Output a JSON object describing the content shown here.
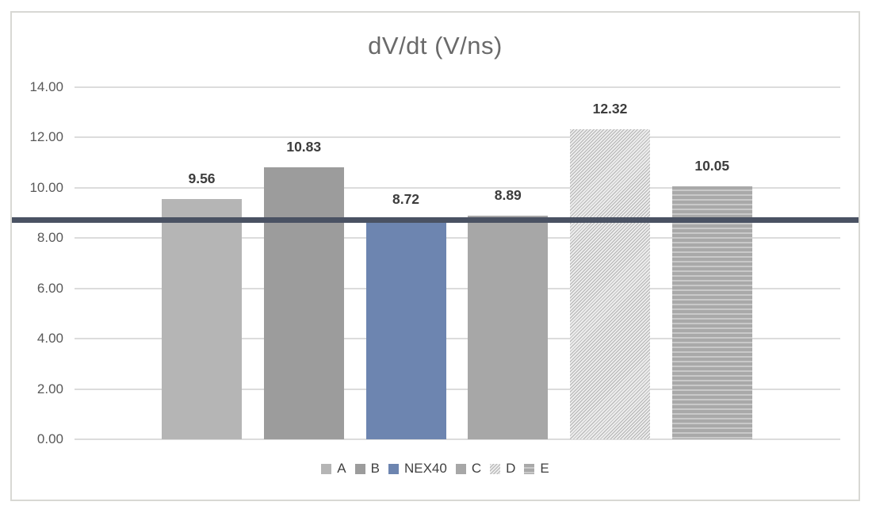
{
  "chart_data": {
    "type": "bar",
    "title": "dV/dt (V/ns)",
    "categories": [
      "A",
      "B",
      "NEX40",
      "C",
      "D",
      "E"
    ],
    "values": [
      9.56,
      10.83,
      8.72,
      8.89,
      12.32,
      10.05
    ],
    "value_labels": [
      "9.56",
      "10.83",
      "8.72",
      "8.89",
      "12.32",
      "10.05"
    ],
    "xlabel": "",
    "ylabel": "",
    "ylim": [
      0,
      14
    ],
    "y_tick_step": 2,
    "y_tick_labels": [
      "0.00",
      "2.00",
      "4.00",
      "6.00",
      "8.00",
      "10.00",
      "12.00",
      "14.00"
    ],
    "grid": true,
    "legend_position": "bottom",
    "series_styles": [
      {
        "fill": "solid",
        "color": "#b5b5b5"
      },
      {
        "fill": "solid",
        "color": "#9c9c9c"
      },
      {
        "fill": "solid",
        "color": "#6d85b0"
      },
      {
        "fill": "solid",
        "color": "#a7a7a7"
      },
      {
        "fill": "diagonal-hatch",
        "color": "#b3b3b3"
      },
      {
        "fill": "horizontal-stripes",
        "color": "#a9a9a9"
      }
    ],
    "reference_line": {
      "value": 8.72,
      "color": "#4a5263"
    },
    "colors": {
      "gridline": "#dcdcdc",
      "axis_text": "#595959",
      "title_text": "#6a6a6a",
      "value_label_text": "#3d3d3d",
      "frame_border": "#d8d8d4",
      "highlight_bar": "#6d85b0"
    }
  }
}
